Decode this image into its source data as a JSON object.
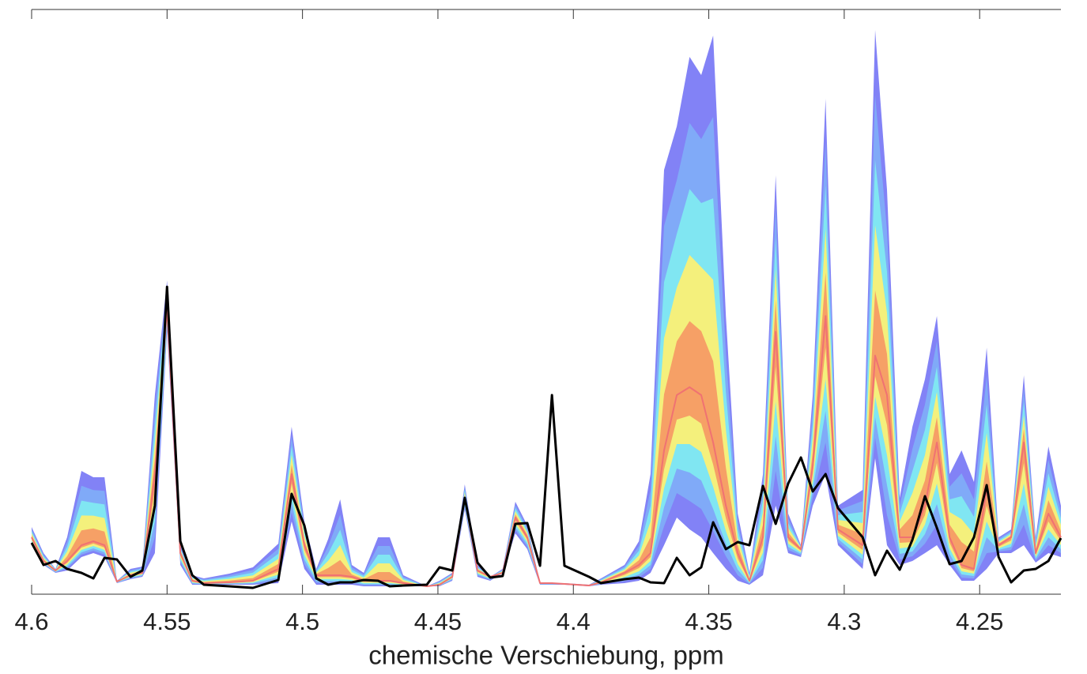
{
  "chart_data": {
    "type": "line",
    "xlabel": "chemische Verschiebung, ppm",
    "xlim": [
      4.6,
      4.22
    ],
    "ylim": [
      0,
      740
    ],
    "xticks": [
      4.6,
      4.55,
      4.5,
      4.45,
      4.4,
      4.35,
      4.3,
      4.25
    ],
    "band_colors": [
      "#8282f6",
      "#80aaf8",
      "#80e6f2",
      "#f4f07c",
      "#f6a066"
    ],
    "x": [
      4.6,
      4.5956,
      4.5912,
      4.5869,
      4.5816,
      4.5772,
      4.5731,
      4.5685,
      4.5635,
      4.5591,
      4.5545,
      4.55,
      4.5451,
      4.5407,
      4.5364,
      4.527,
      4.5183,
      4.5089,
      4.504,
      4.4993,
      4.4949,
      4.4905,
      4.4861,
      4.4818,
      4.4774,
      4.4721,
      4.4678,
      4.4628,
      4.4541,
      4.4494,
      4.4447,
      4.4401,
      4.4354,
      4.4307,
      4.4261,
      4.4214,
      4.417,
      4.4123,
      4.4079,
      4.4033,
      4.3942,
      4.3898,
      4.3811,
      4.3758,
      4.3715,
      4.3665,
      4.3618,
      4.3571,
      4.3528,
      4.3484,
      4.3437,
      4.3393,
      4.335,
      4.33,
      4.3253,
      4.3207,
      4.316,
      4.3116,
      4.3069,
      4.3023,
      4.2932,
      4.2886,
      4.2842,
      4.2795,
      4.2748,
      4.2702,
      4.2658,
      4.2611,
      4.2567,
      4.2521,
      4.2474,
      4.243,
      4.2384,
      4.2337,
      4.2293,
      4.2246,
      4.22
    ],
    "series": [
      {
        "color": "#8282f6",
        "values": [
          85,
          52,
          32,
          72,
          156,
          148,
          148,
          17,
          32,
          35,
          252,
          397,
          62,
          24,
          20,
          26,
          34,
          64,
          212,
          92,
          32,
          70,
          120,
          37,
          27,
          72,
          72,
          24,
          10,
          17,
          27,
          139,
          37,
          22,
          32,
          117,
          87,
          14,
          14,
          14,
          12,
          20,
          37,
          67,
          152,
          537,
          592,
          680,
          657,
          707,
          352,
          102,
          27,
          152,
          530,
          102,
          62,
          252,
          627,
          112,
          132,
          714,
          512,
          122,
          212,
          272,
          352,
          152,
          182,
          142,
          312,
          72,
          82,
          277,
          72,
          187,
          112
        ]
      },
      {
        "color": "#8282f6",
        "values": [
          62,
          37,
          27,
          30,
          47,
          52,
          47,
          14,
          19,
          22,
          52,
          332,
          37,
          12,
          12,
          12,
          12,
          14,
          92,
          32,
          12,
          12,
          12,
          12,
          10,
          10,
          10,
          10,
          10,
          10,
          17,
          107,
          22,
          17,
          27,
          77,
          57,
          12,
          12,
          12,
          10,
          12,
          14,
          17,
          27,
          62,
          97,
          82,
          72,
          52,
          32,
          17,
          12,
          24,
          112,
          52,
          47,
          112,
          152,
          62,
          32,
          172,
          62,
          37,
          42,
          52,
          62,
          37,
          17,
          17,
          32,
          52,
          52,
          62,
          40,
          52,
          47
        ]
      },
      {
        "color": "#f07272",
        "values": [
          72,
          42,
          30,
          42,
          62,
          67,
          62,
          16,
          24,
          27,
          152,
          362,
          52,
          17,
          14,
          15,
          17,
          32,
          152,
          62,
          24,
          24,
          24,
          22,
          17,
          17,
          17,
          14,
          10,
          12,
          22,
          122,
          30,
          22,
          27,
          97,
          72,
          14,
          14,
          13,
          11,
          15,
          27,
          37,
          52,
          182,
          252,
          262,
          252,
          192,
          112,
          52,
          17,
          72,
          332,
          72,
          57,
          162,
          352,
          82,
          62,
          302,
          252,
          72,
          72,
          112,
          192,
          72,
          37,
          32,
          132,
          62,
          72,
          192,
          52,
          102,
          72
        ]
      },
      {
        "color": "#000000",
        "values": [
          65,
          37,
          42,
          32,
          27,
          20,
          46,
          44,
          22,
          30,
          112,
          389,
          67,
          24,
          12,
          10,
          8,
          18,
          127,
          87,
          20,
          12,
          15,
          15,
          18,
          17,
          10,
          11,
          12,
          34,
          30,
          122,
          40,
          21,
          23,
          89,
          90,
          36,
          252,
          36,
          22,
          14,
          19,
          21,
          15,
          14,
          46,
          24,
          34,
          91,
          57,
          66,
          62,
          137,
          89,
          140,
          173,
          130,
          152,
          109,
          72,
          24,
          55,
          31,
          69,
          124,
          84,
          38,
          42,
          72,
          138,
          47,
          15,
          30,
          32,
          42,
          71
        ]
      }
    ]
  }
}
